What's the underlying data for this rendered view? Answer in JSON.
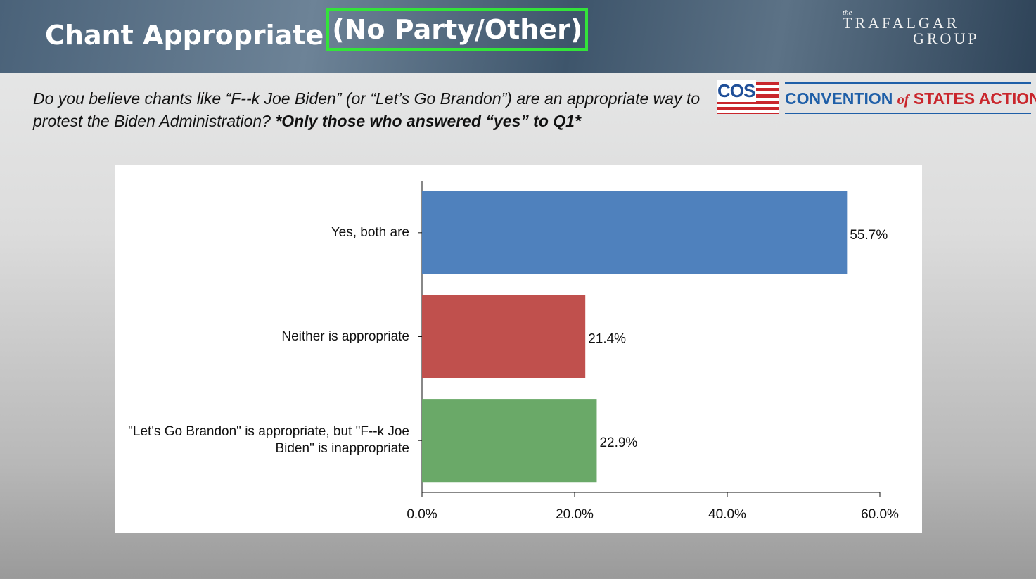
{
  "header": {
    "title": "Chant Appropriate",
    "title_highlight": "(No Party/Other)",
    "question": "Do you believe chants like “F--k Joe Biden” (or “Let’s Go Brandon”) are an appropriate way to protest the Biden Administration?",
    "question_note": "*Only those who answered “yes” to Q1*"
  },
  "logos": {
    "trafalgar": {
      "small": "the",
      "line1": "TRAFALGAR",
      "line2": "GROUP"
    },
    "cos": {
      "mark": "COS",
      "name_1": "CONVENTION",
      "name_of": "of",
      "name_2": "STATES ACTION"
    }
  },
  "chart_data": {
    "type": "bar",
    "orientation": "horizontal",
    "categories": [
      "Yes, both are",
      "Neither is appropriate",
      "\"Let's Go Brandon\" is appropriate, but \"F--k Joe Biden\" is inappropriate"
    ],
    "values": [
      55.7,
      21.4,
      22.9
    ],
    "value_labels": [
      "55.7%",
      "21.4%",
      "22.9%"
    ],
    "colors": [
      "#4f81bd",
      "#c0504d",
      "#6aa968"
    ],
    "xlim": [
      0,
      60
    ],
    "xticks": [
      {
        "value": 0,
        "label": "0.0%"
      },
      {
        "value": 20,
        "label": "20.0%"
      },
      {
        "value": 40,
        "label": "40.0%"
      },
      {
        "value": 60,
        "label": "60.0%"
      }
    ],
    "grid": false
  }
}
